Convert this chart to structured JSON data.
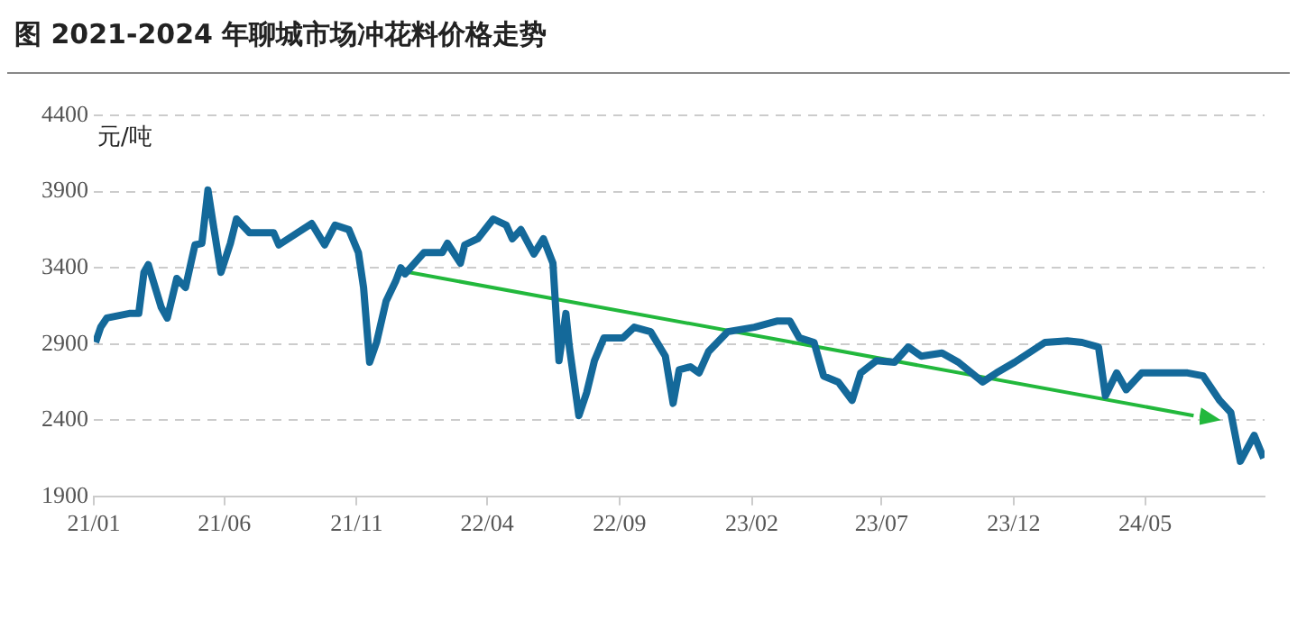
{
  "chart_data": {
    "type": "line",
    "title": "图 2021-2024 年聊城市场冲花料价格走势",
    "ylabel": "元/吨",
    "xlim": [
      "2021-01-01",
      "2024-09-16"
    ],
    "xticks": [
      {
        "value": "2021-01-01",
        "label": "21/01"
      },
      {
        "value": "2021-06-01",
        "label": "21/06"
      },
      {
        "value": "2021-11-01",
        "label": "21/11"
      },
      {
        "value": "2022-04-01",
        "label": "22/04"
      },
      {
        "value": "2022-09-01",
        "label": "22/09"
      },
      {
        "value": "2023-02-01",
        "label": "23/02"
      },
      {
        "value": "2023-07-01",
        "label": "23/07"
      },
      {
        "value": "2023-12-01",
        "label": "23/12"
      },
      {
        "value": "2024-05-01",
        "label": "24/05"
      }
    ],
    "ylim": [
      1900,
      4400
    ],
    "yticks": [
      1900,
      2400,
      2900,
      3400,
      3900,
      4400
    ],
    "grid": "y",
    "legend": false,
    "marker": "none",
    "line_style": "solid",
    "series": [
      {
        "color": "#14699a",
        "x": [
          "2021-01-03",
          "2021-01-09",
          "2021-01-16",
          "2021-02-11",
          "2021-02-22",
          "2021-02-28",
          "2021-03-05",
          "2021-03-20",
          "2021-03-27",
          "2021-04-07",
          "2021-04-17",
          "2021-04-28",
          "2021-05-06",
          "2021-05-13",
          "2021-05-19",
          "2021-05-28",
          "2021-06-08",
          "2021-06-15",
          "2021-06-30",
          "2021-07-28",
          "2021-08-03",
          "2021-09-10",
          "2021-09-25",
          "2021-10-07",
          "2021-10-23",
          "2021-11-03",
          "2021-11-09",
          "2021-11-16",
          "2021-11-24",
          "2021-12-05",
          "2021-12-16",
          "2021-12-22",
          "2021-12-27",
          "2022-01-18",
          "2022-02-08",
          "2022-02-14",
          "2022-03-01",
          "2022-03-06",
          "2022-03-21",
          "2022-04-08",
          "2022-04-23",
          "2022-04-30",
          "2022-05-10",
          "2022-05-25",
          "2022-06-05",
          "2022-06-16",
          "2022-06-23",
          "2022-07-01",
          "2022-07-05",
          "2022-07-16",
          "2022-07-25",
          "2022-08-03",
          "2022-08-14",
          "2022-09-05",
          "2022-09-18",
          "2022-10-07",
          "2022-10-24",
          "2022-11-02",
          "2022-11-09",
          "2022-11-22",
          "2022-12-02",
          "2022-12-13",
          "2023-01-04",
          "2023-02-04",
          "2023-03-02",
          "2023-03-17",
          "2023-03-28",
          "2023-04-14",
          "2023-04-25",
          "2023-05-12",
          "2023-05-28",
          "2023-06-07",
          "2023-06-25",
          "2023-07-16",
          "2023-08-01",
          "2023-08-16",
          "2023-09-09",
          "2023-09-28",
          "2023-10-26",
          "2023-11-11",
          "2023-12-02",
          "2024-01-06",
          "2024-02-01",
          "2024-02-18",
          "2024-03-08",
          "2024-03-16",
          "2024-03-29",
          "2024-04-09",
          "2024-04-27",
          "2024-05-22",
          "2024-06-19",
          "2024-07-07",
          "2024-07-26",
          "2024-08-08",
          "2024-08-19",
          "2024-09-04",
          "2024-09-15"
        ],
        "values": [
          2910,
          3010,
          3070,
          3100,
          3100,
          3370,
          3420,
          3140,
          3070,
          3330,
          3270,
          3550,
          3560,
          3910,
          3690,
          3370,
          3560,
          3720,
          3630,
          3630,
          3550,
          3690,
          3550,
          3680,
          3650,
          3500,
          3270,
          2780,
          2910,
          3180,
          3310,
          3400,
          3360,
          3500,
          3500,
          3560,
          3430,
          3550,
          3590,
          3720,
          3680,
          3590,
          3650,
          3490,
          3590,
          3430,
          2790,
          3100,
          2880,
          2430,
          2580,
          2790,
          2940,
          2940,
          3010,
          2980,
          2820,
          2510,
          2730,
          2750,
          2710,
          2850,
          2980,
          3010,
          3050,
          3050,
          2940,
          2910,
          2690,
          2650,
          2530,
          2710,
          2790,
          2780,
          2880,
          2820,
          2840,
          2780,
          2650,
          2710,
          2780,
          2910,
          2920,
          2910,
          2880,
          2560,
          2710,
          2600,
          2710,
          2710,
          2710,
          2690,
          2530,
          2450,
          2130,
          2300,
          2150
        ]
      },
      {
        "type": "line",
        "color": "#22b83c",
        "x": [
          "2021-12-22",
          "2024-06-26"
        ],
        "values": [
          3380,
          2430
        ]
      }
    ]
  }
}
